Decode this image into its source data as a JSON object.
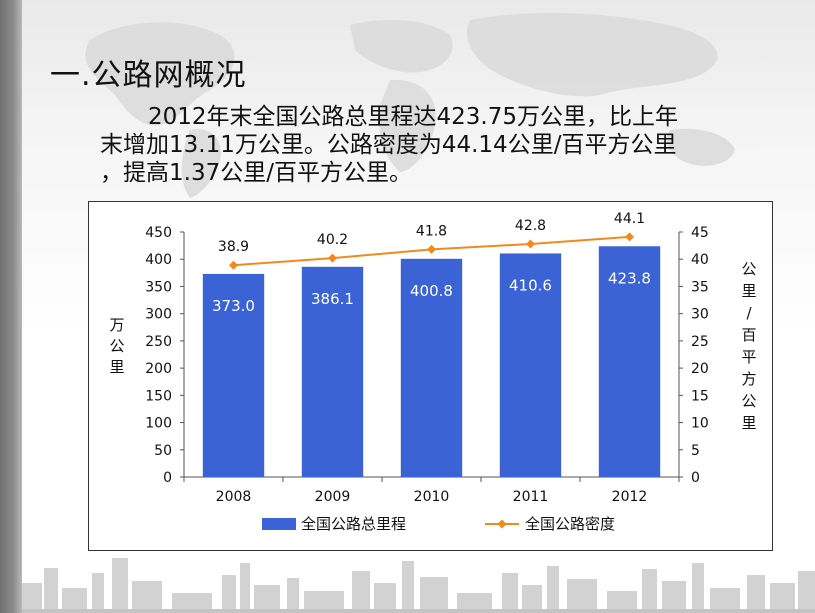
{
  "slide": {
    "title": "一.公路网概况",
    "body_lines": [
      "2012年末全国公路总里程达423.75万公里，比上年",
      "末增加13.11万公里。公路密度为44.14公里/百平方公里",
      "，提高1.37公里/百平方公里。"
    ]
  },
  "chart_data": {
    "type": "bar+line",
    "categories": [
      "2008",
      "2009",
      "2010",
      "2011",
      "2012"
    ],
    "series": [
      {
        "name": "全国公路总里程",
        "type": "bar",
        "axis": "left",
        "values": [
          373.0,
          386.1,
          400.8,
          410.6,
          423.8
        ],
        "labels": [
          "373.0",
          "386.1",
          "400.8",
          "410.6",
          "423.8"
        ],
        "color": "#3b63d6"
      },
      {
        "name": "全国公路密度",
        "type": "line",
        "axis": "right",
        "values": [
          38.9,
          40.2,
          41.8,
          42.8,
          44.1
        ],
        "labels": [
          "38.9",
          "40.2",
          "41.8",
          "42.8",
          "44.1"
        ],
        "color": "#f08a1c"
      }
    ],
    "ylabel_left": "万公里",
    "ylabel_right": "公里/百平方公里",
    "ylim_left": [
      0,
      450
    ],
    "ylim_right": [
      0,
      45
    ],
    "yticks_left": [
      "0",
      "50",
      "100",
      "150",
      "200",
      "250",
      "300",
      "350",
      "400",
      "450"
    ],
    "yticks_right": [
      "0",
      "5",
      "10",
      "15",
      "20",
      "25",
      "30",
      "35",
      "40",
      "45"
    ],
    "legend_position": "bottom",
    "grid": false
  }
}
